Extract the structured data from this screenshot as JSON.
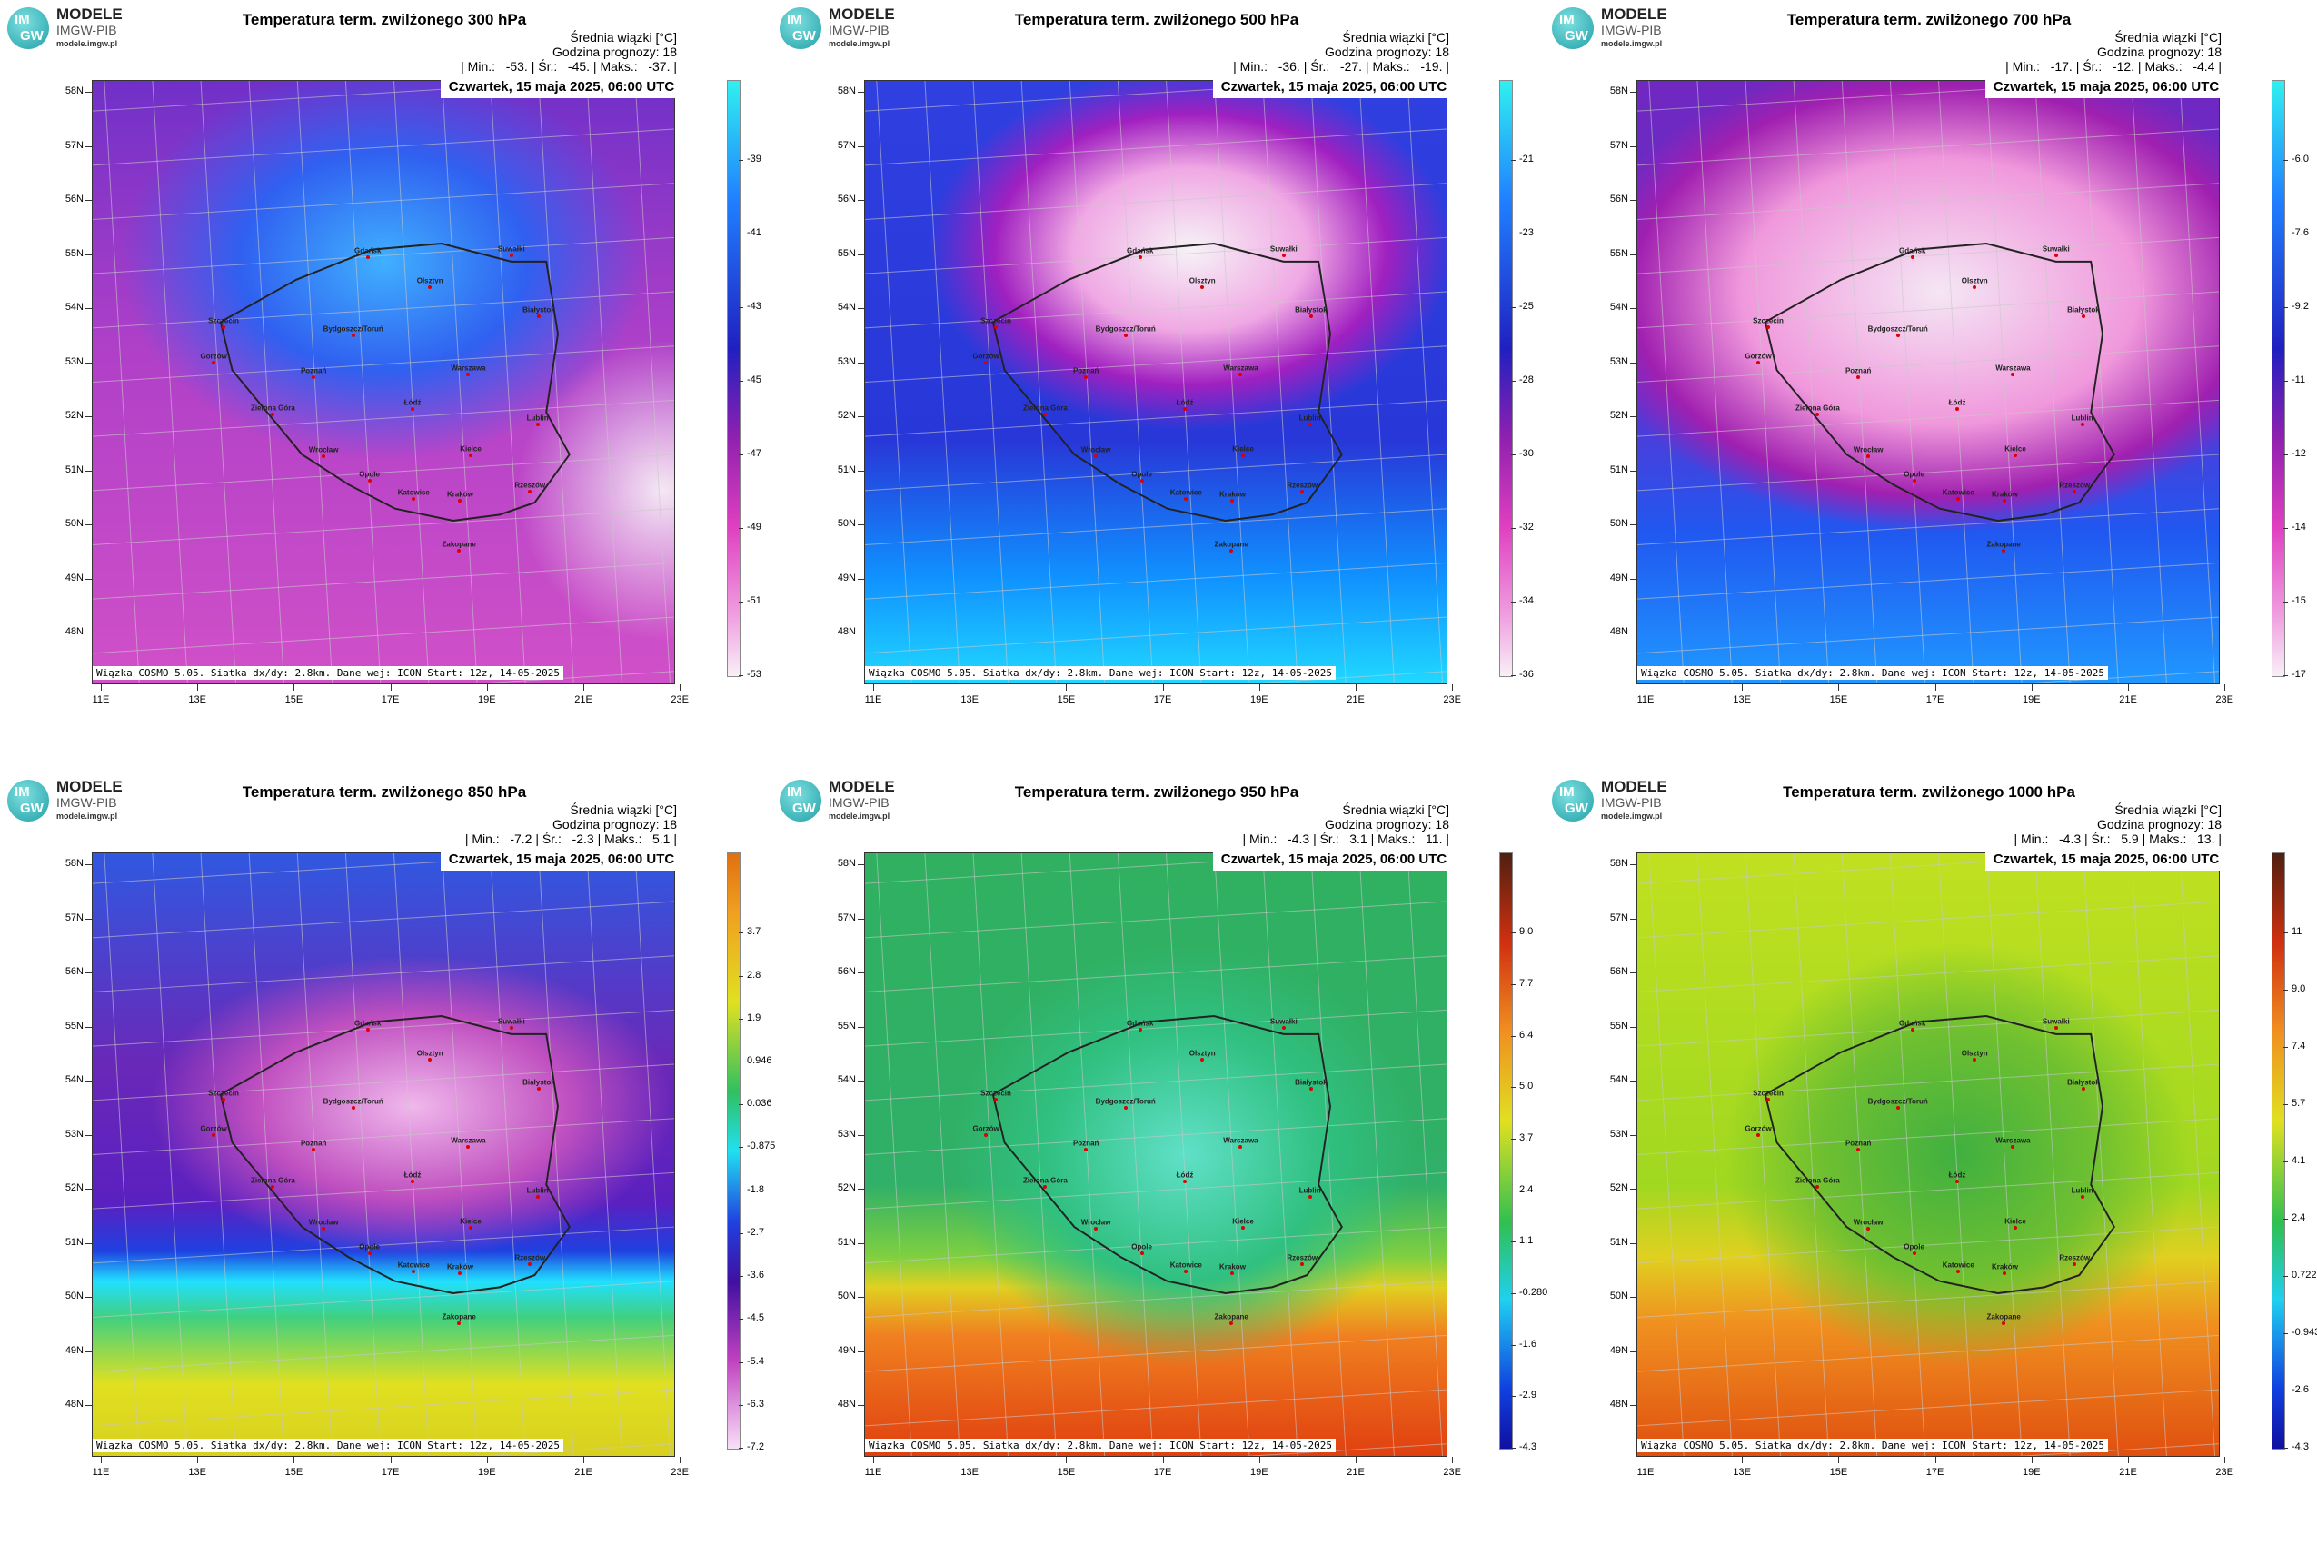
{
  "logo": {
    "icon_top": "IM",
    "icon_bottom": "GW",
    "name": "MODELE",
    "org": "IMGW-PIB",
    "url": "modele.imgw.pl"
  },
  "header": "Średnia wiązki [°C]",
  "forecast_hour": "Godzina prognozy: 18",
  "date": "Czwartek, 15 maja 2025, 06:00 UTC",
  "footer": "Wiązka COSMO 5.05. Siatka dx/dy: 2.8km. Dane wej: ICON Start: 12z, 14-05-2025",
  "lat_labels": [
    "58N",
    "57N",
    "56N",
    "55N",
    "54N",
    "53N",
    "52N",
    "51N",
    "50N",
    "49N",
    "48N"
  ],
  "lon_labels": [
    "11E",
    "13E",
    "15E",
    "17E",
    "19E",
    "21E",
    "23E"
  ],
  "cities": [
    {
      "name": "Gdańsk",
      "x": 47.3,
      "y": 29.3
    },
    {
      "name": "Olsztyn",
      "x": 58,
      "y": 34.2
    },
    {
      "name": "Suwałki",
      "x": 72,
      "y": 28.9
    },
    {
      "name": "Białystok",
      "x": 76.7,
      "y": 39.1
    },
    {
      "name": "Bydgoszcz/Toruń",
      "x": 44.8,
      "y": 42.3
    },
    {
      "name": "Szczecin",
      "x": 22.5,
      "y": 40.8
    },
    {
      "name": "Gorzów",
      "x": 20.8,
      "y": 46.7
    },
    {
      "name": "Poznań",
      "x": 38,
      "y": 49.1
    },
    {
      "name": "Warszawa",
      "x": 64.6,
      "y": 48.7
    },
    {
      "name": "Zielona Góra",
      "x": 31,
      "y": 55.3
    },
    {
      "name": "Łódź",
      "x": 55,
      "y": 54.5
    },
    {
      "name": "Lublin",
      "x": 76.5,
      "y": 57
    },
    {
      "name": "Wrocław",
      "x": 39.7,
      "y": 62.3
    },
    {
      "name": "Kielce",
      "x": 65,
      "y": 62.1
    },
    {
      "name": "Opole",
      "x": 47.6,
      "y": 66.3
    },
    {
      "name": "Katowice",
      "x": 55.2,
      "y": 69.4
    },
    {
      "name": "Kraków",
      "x": 63.2,
      "y": 69.7
    },
    {
      "name": "Rzeszów",
      "x": 75.2,
      "y": 68.2
    },
    {
      "name": "Zakopane",
      "x": 63,
      "y": 78
    }
  ],
  "panels": [
    {
      "title": "Temperatura term. zwilżonego 300 hPa",
      "stats": "| Min.:   -53. | Śr.:   -45. | Maks.:   -37. |",
      "colorbar": [
        "-39",
        "-41",
        "-43",
        "-45",
        "-47",
        "-49",
        "-51",
        "-53"
      ]
    },
    {
      "title": "Temperatura term. zwilżonego 500 hPa",
      "stats": "| Min.:   -36. | Śr.:   -27. | Maks.:   -19. |",
      "colorbar": [
        "-21",
        "-23",
        "-25",
        "-28",
        "-30",
        "-32",
        "-34",
        "-36"
      ]
    },
    {
      "title": "Temperatura term. zwilżonego 700 hPa",
      "stats": "| Min.:   -17. | Śr.:   -12. | Maks.:   -4.4 |",
      "colorbar": [
        "-6.0",
        "-7.6",
        "-9.2",
        "-11",
        "-12",
        "-14",
        "-15",
        "-17"
      ]
    },
    {
      "title": "Temperatura term. zwilżonego 850 hPa",
      "stats": "| Min.:   -7.2 | Śr.:   -2.3 | Maks.:   5.1 |",
      "colorbar": [
        "3.7",
        "2.8",
        "1.9",
        "0.946",
        "0.036",
        "-0.875",
        "-1.8",
        "-2.7",
        "-3.6",
        "-4.5",
        "-5.4",
        "-6.3",
        "-7.2"
      ]
    },
    {
      "title": "Temperatura term. zwilżonego 950 hPa",
      "stats": "| Min.:   -4.3 | Śr.:   3.1 | Maks.:   11. |",
      "colorbar": [
        "9.0",
        "7.7",
        "6.4",
        "5.0",
        "3.7",
        "2.4",
        "1.1",
        "-0.280",
        "-1.6",
        "-2.9",
        "-4.3"
      ]
    },
    {
      "title": "Temperatura term. zwilżonego 1000 hPa",
      "stats": "| Min.:   -4.3 | Śr.:   5.9 | Maks.:   13. |",
      "colorbar": [
        "11",
        "9.0",
        "7.4",
        "5.7",
        "4.1",
        "2.4",
        "0.722",
        "-0.943",
        "-2.6",
        "-4.3"
      ]
    }
  ]
}
